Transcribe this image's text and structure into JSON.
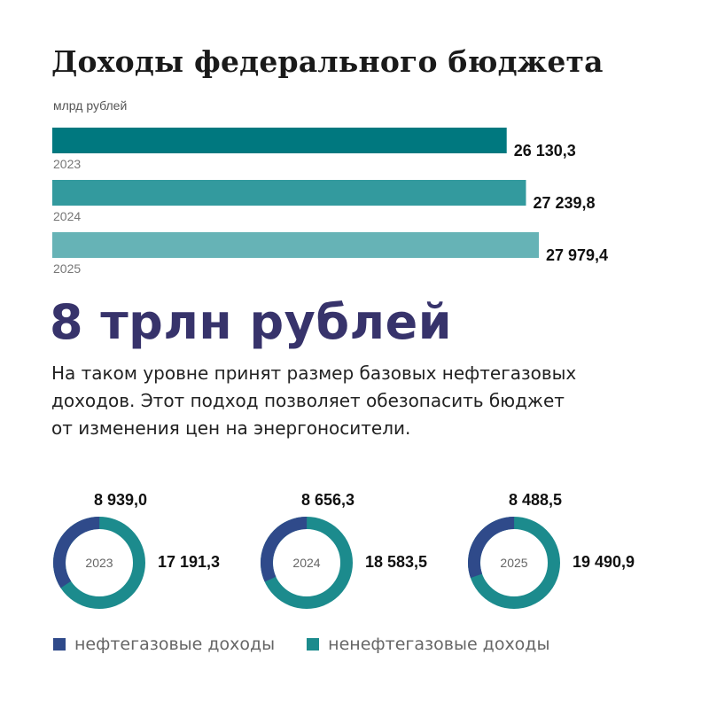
{
  "header": {
    "title": "Доходы федерального бюджета",
    "unit": "млрд рублей"
  },
  "highlight": {
    "value": "8 трлн рублей",
    "lines": [
      "На таком уровне принят размер базовых нефтегазовых",
      "доходов. Этот подход позволяет обезопасить бюджет",
      "от изменения цен на энергоносители."
    ]
  },
  "legend": {
    "oil_gas": "нефтегазовые доходы",
    "non_oil_gas": "ненефтегазовые доходы"
  },
  "colors": {
    "bar_2023": "#00787f",
    "bar_2024": "#339a9e",
    "bar_2025": "#66b3b6",
    "oil_gas": "#2f4a8a",
    "non_oil_gas": "#1c8b8d"
  },
  "chart_data": [
    {
      "type": "bar",
      "orientation": "horizontal",
      "title": "Доходы федерального бюджета",
      "ylabel": "млрд рублей",
      "categories": [
        "2023",
        "2024",
        "2025"
      ],
      "values": [
        26130.3,
        27239.8,
        27979.4
      ],
      "value_labels": [
        "26 130,3",
        "27 239,8",
        "27 979,4"
      ]
    },
    {
      "type": "pie",
      "variant": "donut",
      "center_label": "2023",
      "slices": [
        {
          "name": "нефтегазовые доходы",
          "value": 8939.0,
          "label": "8 939,0"
        },
        {
          "name": "ненефтегазовые доходы",
          "value": 17191.3,
          "label": "17 191,3"
        }
      ]
    },
    {
      "type": "pie",
      "variant": "donut",
      "center_label": "2024",
      "slices": [
        {
          "name": "нефтегазовые доходы",
          "value": 8656.3,
          "label": "8 656,3"
        },
        {
          "name": "ненефтегазовые доходы",
          "value": 18583.5,
          "label": "18 583,5"
        }
      ]
    },
    {
      "type": "pie",
      "variant": "donut",
      "center_label": "2025",
      "slices": [
        {
          "name": "нефтегазовые доходы",
          "value": 8488.5,
          "label": "8 488,5"
        },
        {
          "name": "ненефтегазовые доходы",
          "value": 19490.9,
          "label": "19 490,9"
        }
      ]
    }
  ]
}
